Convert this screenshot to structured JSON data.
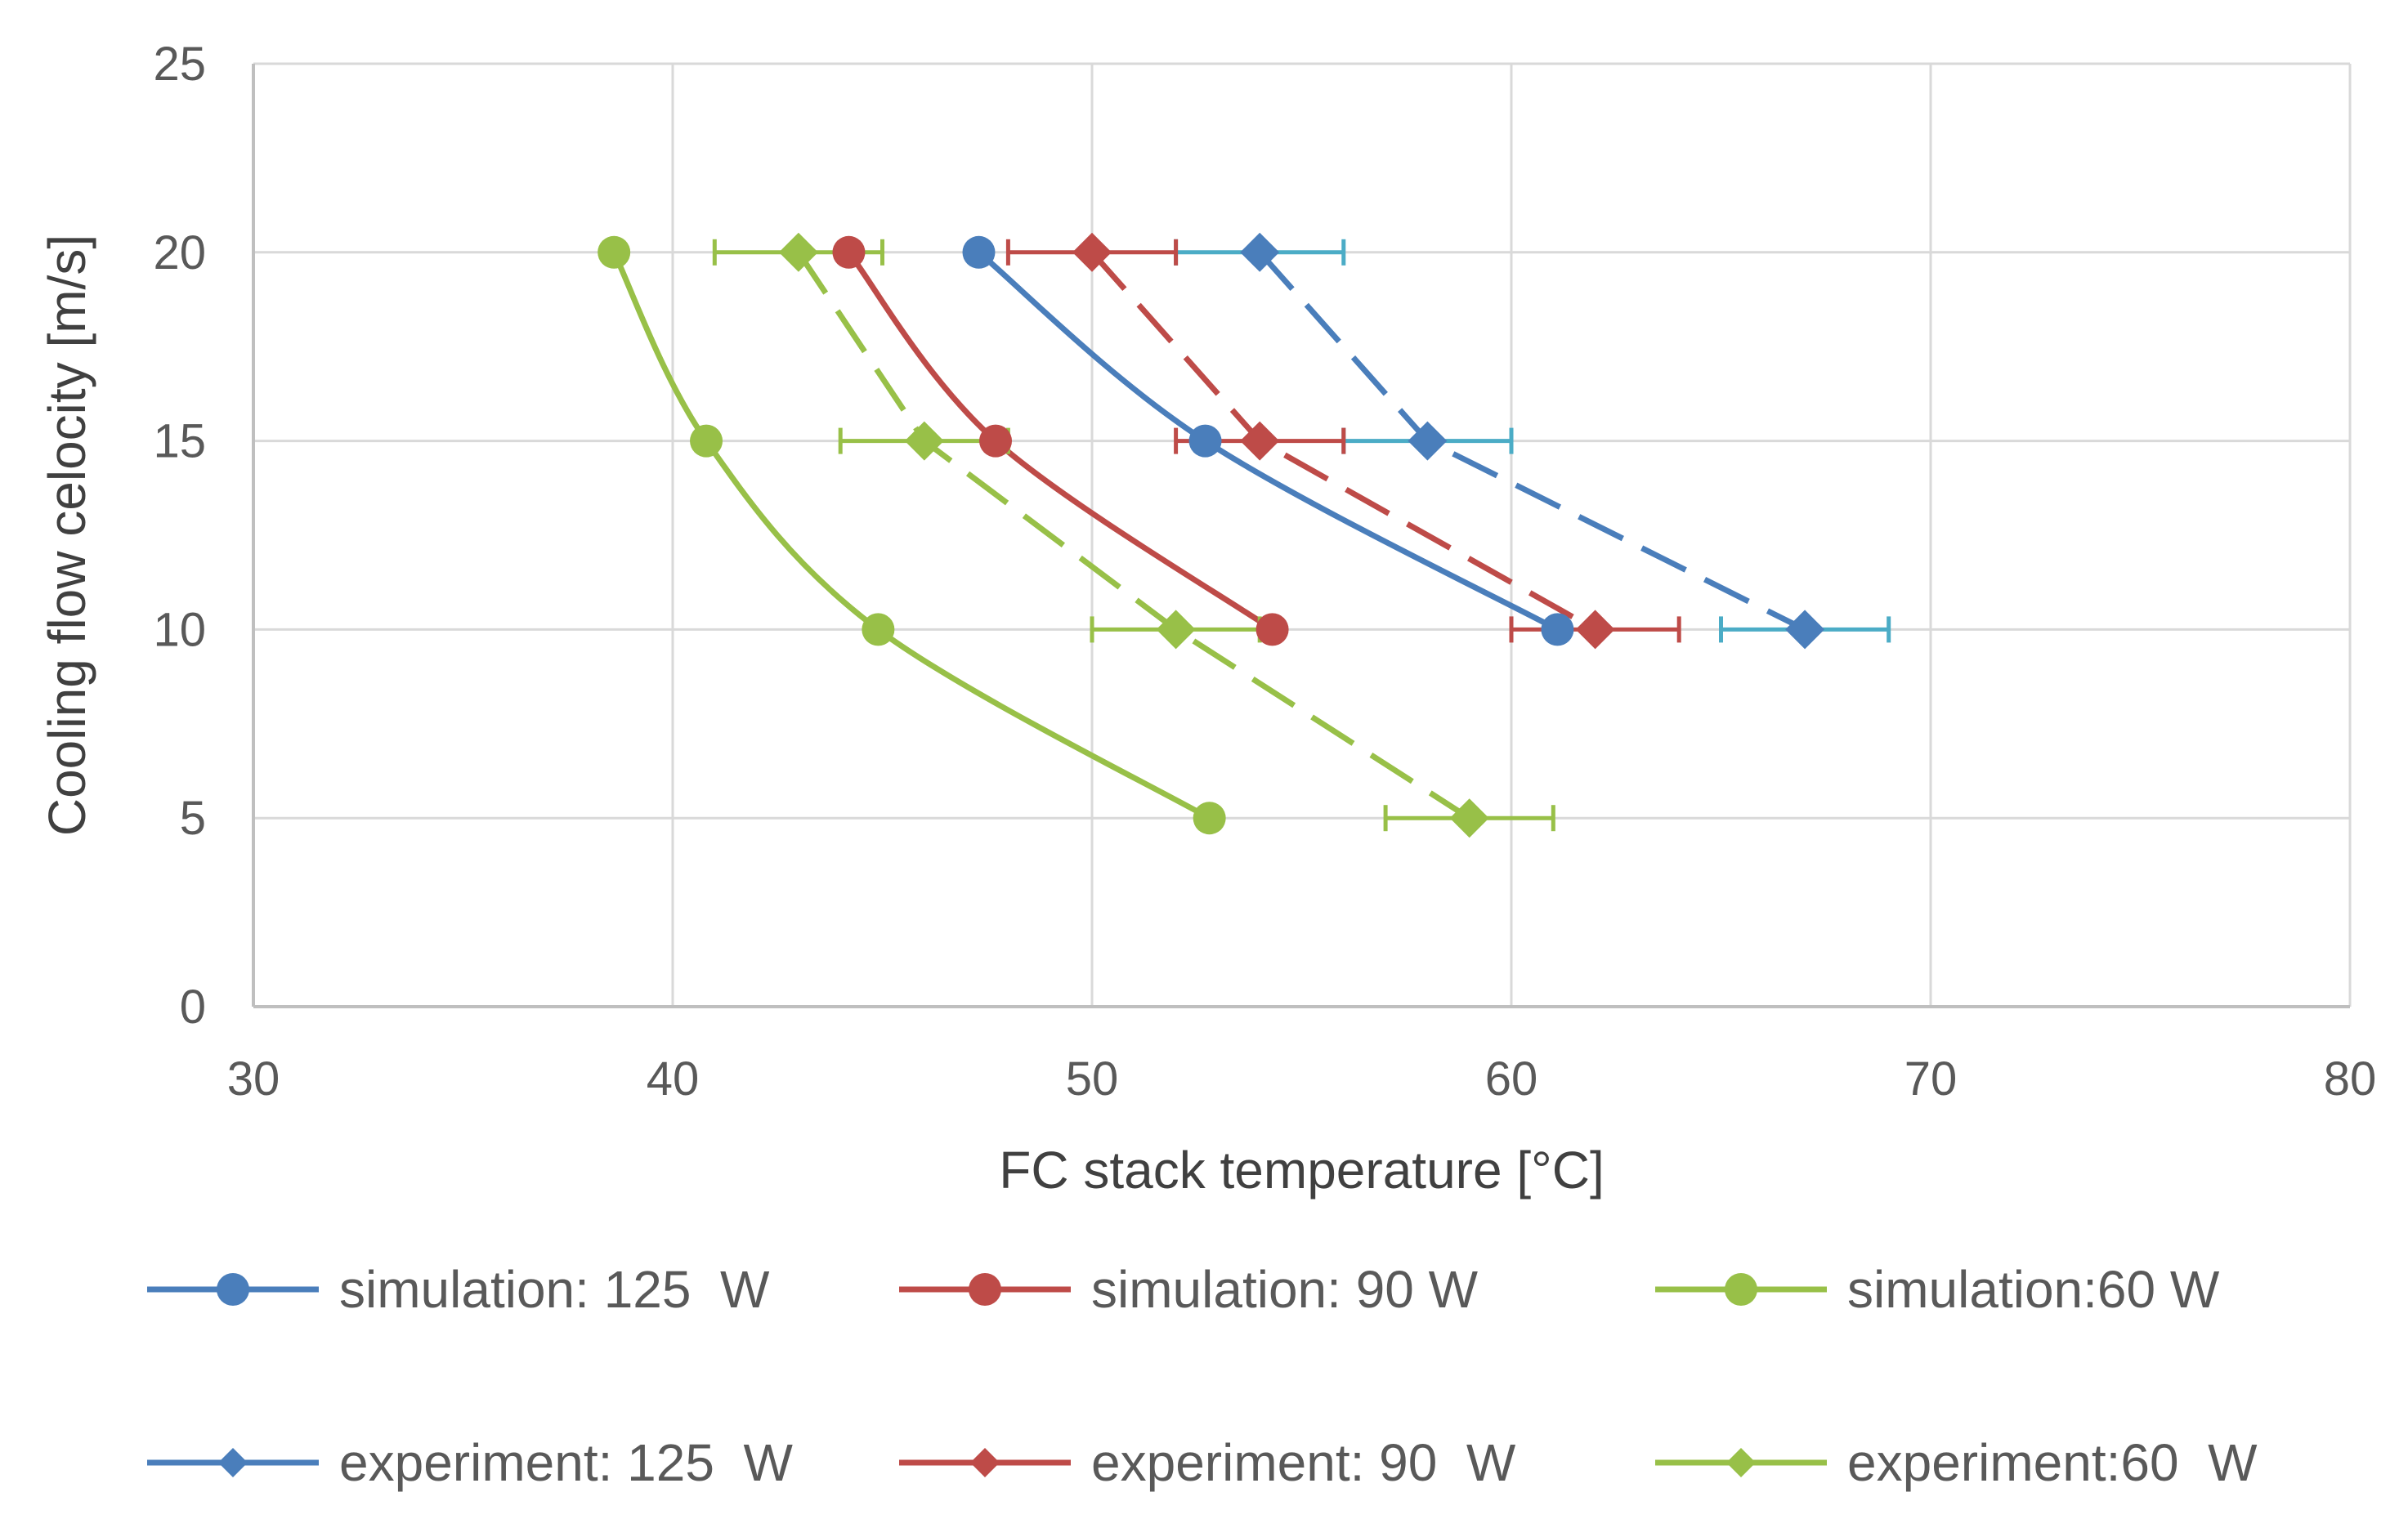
{
  "chart_data": {
    "type": "scatter",
    "title": "",
    "xlabel": "FC stack temperature  [°C]",
    "ylabel": "Cooling flow celocity [m/s]",
    "xlim": [
      30,
      80
    ],
    "ylim": [
      0,
      25
    ],
    "xticks": [
      "30",
      "40",
      "50",
      "60",
      "70",
      "80"
    ],
    "yticks": [
      "0",
      "5",
      "10",
      "15",
      "20",
      "25"
    ],
    "grid": true,
    "legend_position": "bottom",
    "series": [
      {
        "name": "simulation: 125  W",
        "kind": "simulation",
        "color": "#4a7ebb",
        "marker": "circle",
        "line": "solid",
        "points": [
          [
            47.3,
            20
          ],
          [
            52.7,
            15
          ],
          [
            61.1,
            10
          ]
        ]
      },
      {
        "name": "simulation: 90 W",
        "kind": "simulation",
        "color": "#be4b48",
        "marker": "circle",
        "line": "solid",
        "points": [
          [
            44.2,
            20
          ],
          [
            47.7,
            15
          ],
          [
            54.3,
            10
          ]
        ]
      },
      {
        "name": "simulation:60 W",
        "kind": "simulation",
        "color": "#98c048",
        "marker": "circle",
        "line": "solid",
        "points": [
          [
            38.6,
            20
          ],
          [
            40.8,
            15
          ],
          [
            44.9,
            10
          ],
          [
            52.8,
            5
          ]
        ]
      },
      {
        "name": "experiment: 125  W",
        "kind": "experiment",
        "color": "#4a7ebb",
        "error_color": "#4bacc6",
        "marker": "diamond",
        "line": "dashed",
        "error_x": 2,
        "points": [
          [
            54,
            20
          ],
          [
            58,
            15
          ],
          [
            67,
            10
          ]
        ]
      },
      {
        "name": "experiment: 90  W",
        "kind": "experiment",
        "color": "#be4b48",
        "error_color": "#be4b48",
        "marker": "diamond",
        "line": "dashed",
        "error_x": 2,
        "points": [
          [
            50,
            20
          ],
          [
            54,
            15
          ],
          [
            62,
            10
          ]
        ]
      },
      {
        "name": "experiment:60  W",
        "kind": "experiment",
        "color": "#98c048",
        "error_color": "#98c048",
        "marker": "diamond",
        "line": "dashed",
        "error_x": 2,
        "points": [
          [
            43,
            20
          ],
          [
            46,
            15
          ],
          [
            52,
            10
          ],
          [
            59,
            5
          ]
        ]
      }
    ]
  }
}
